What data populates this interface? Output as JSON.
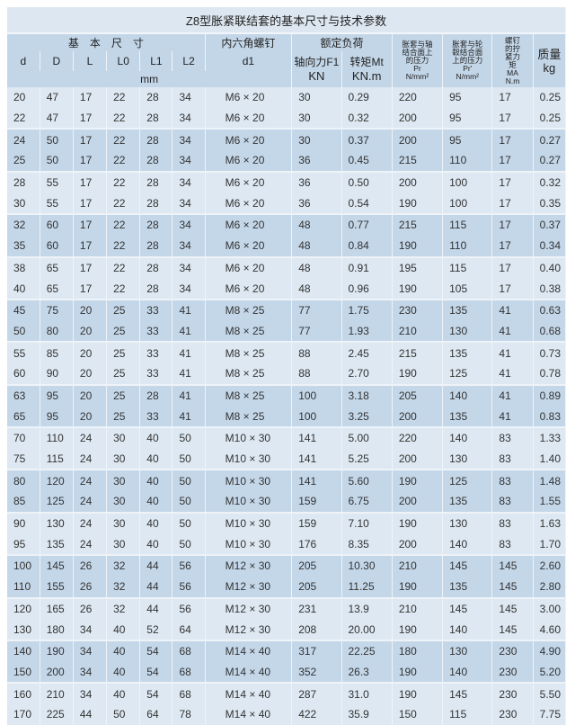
{
  "title": "Z8型胀紧联结套的基本尺寸与技术参数",
  "headers": {
    "basic_dims": "基　本　尺　寸",
    "screw": "内六角螺钉",
    "rated_load": "额定负荷",
    "shaft_pressure": "胀套与轴结合面上的压力",
    "shaft_pressure_sym": "Pr",
    "shaft_pressure_unit": "N/mm²",
    "hub_pressure": "胀套与轮毂结合面上的压力",
    "hub_pressure_sym": "Pr'",
    "hub_pressure_unit": "N/mm²",
    "torque_screw": "螺钉的拧紧力矩",
    "torque_screw_sym": "MA",
    "torque_screw_unit": "N.m",
    "mass": "质量",
    "mass_unit": "kg",
    "d": "d",
    "D": "D",
    "L": "L",
    "L0": "L0",
    "L1": "L1",
    "L2": "L2",
    "d1": "d1",
    "axial_force": "轴向力F1",
    "axial_force_unit": "KN",
    "torque": "转矩Mt",
    "torque_unit": "KN.m",
    "mm": "mm"
  },
  "rows": [
    [
      "20",
      "47",
      "17",
      "22",
      "28",
      "34",
      "M6 × 20",
      "30",
      "0.29",
      "220",
      "95",
      "17",
      "0.25"
    ],
    [
      "22",
      "47",
      "17",
      "22",
      "28",
      "34",
      "M6 × 20",
      "30",
      "0.32",
      "200",
      "95",
      "17",
      "0.25"
    ],
    [
      "24",
      "50",
      "17",
      "22",
      "28",
      "34",
      "M6 × 20",
      "30",
      "0.37",
      "200",
      "95",
      "17",
      "0.27"
    ],
    [
      "25",
      "50",
      "17",
      "22",
      "28",
      "34",
      "M6 × 20",
      "36",
      "0.45",
      "215",
      "110",
      "17",
      "0.27"
    ],
    [
      "28",
      "55",
      "17",
      "22",
      "28",
      "34",
      "M6 × 20",
      "36",
      "0.50",
      "200",
      "100",
      "17",
      "0.32"
    ],
    [
      "30",
      "55",
      "17",
      "22",
      "28",
      "34",
      "M6 × 20",
      "36",
      "0.54",
      "190",
      "100",
      "17",
      "0.35"
    ],
    [
      "32",
      "60",
      "17",
      "22",
      "28",
      "34",
      "M6 × 20",
      "48",
      "0.77",
      "215",
      "115",
      "17",
      "0.37"
    ],
    [
      "35",
      "60",
      "17",
      "22",
      "28",
      "34",
      "M6 × 20",
      "48",
      "0.84",
      "190",
      "110",
      "17",
      "0.34"
    ],
    [
      "38",
      "65",
      "17",
      "22",
      "28",
      "34",
      "M6 × 20",
      "48",
      "0.91",
      "195",
      "115",
      "17",
      "0.40"
    ],
    [
      "40",
      "65",
      "17",
      "22",
      "28",
      "34",
      "M6 × 20",
      "48",
      "0.96",
      "190",
      "105",
      "17",
      "0.38"
    ],
    [
      "45",
      "75",
      "20",
      "25",
      "33",
      "41",
      "M8 × 25",
      "77",
      "1.75",
      "230",
      "135",
      "41",
      "0.63"
    ],
    [
      "50",
      "80",
      "20",
      "25",
      "33",
      "41",
      "M8 × 25",
      "77",
      "1.93",
      "210",
      "130",
      "41",
      "0.68"
    ],
    [
      "55",
      "85",
      "20",
      "25",
      "33",
      "41",
      "M8 × 25",
      "88",
      "2.45",
      "215",
      "135",
      "41",
      "0.73"
    ],
    [
      "60",
      "90",
      "20",
      "25",
      "33",
      "41",
      "M8 × 25",
      "88",
      "2.70",
      "190",
      "125",
      "41",
      "0.78"
    ],
    [
      "63",
      "95",
      "20",
      "25",
      "28",
      "41",
      "M8 × 25",
      "100",
      "3.18",
      "205",
      "140",
      "41",
      "0.89"
    ],
    [
      "65",
      "95",
      "20",
      "25",
      "33",
      "41",
      "M8 × 25",
      "100",
      "3.25",
      "200",
      "135",
      "41",
      "0.83"
    ],
    [
      "70",
      "110",
      "24",
      "30",
      "40",
      "50",
      "M10 × 30",
      "141",
      "5.00",
      "220",
      "140",
      "83",
      "1.33"
    ],
    [
      "75",
      "115",
      "24",
      "30",
      "40",
      "50",
      "M10 × 30",
      "141",
      "5.25",
      "200",
      "130",
      "83",
      "1.40"
    ],
    [
      "80",
      "120",
      "24",
      "30",
      "40",
      "50",
      "M10 × 30",
      "141",
      "5.60",
      "190",
      "125",
      "83",
      "1.48"
    ],
    [
      "85",
      "125",
      "24",
      "30",
      "40",
      "50",
      "M10 × 30",
      "159",
      "6.75",
      "200",
      "135",
      "83",
      "1.55"
    ],
    [
      "90",
      "130",
      "24",
      "30",
      "40",
      "50",
      "M10 × 30",
      "159",
      "7.10",
      "190",
      "130",
      "83",
      "1.63"
    ],
    [
      "95",
      "135",
      "24",
      "30",
      "40",
      "50",
      "M10 × 30",
      "176",
      "8.35",
      "200",
      "140",
      "83",
      "1.70"
    ],
    [
      "100",
      "145",
      "26",
      "32",
      "44",
      "56",
      "M12 × 30",
      "205",
      "10.30",
      "210",
      "145",
      "145",
      "2.60"
    ],
    [
      "110",
      "155",
      "26",
      "32",
      "44",
      "56",
      "M12 × 30",
      "205",
      "11.25",
      "190",
      "135",
      "145",
      "2.80"
    ],
    [
      "120",
      "165",
      "26",
      "32",
      "44",
      "56",
      "M12 × 30",
      "231",
      "13.9",
      "210",
      "145",
      "145",
      "3.00"
    ],
    [
      "130",
      "180",
      "34",
      "40",
      "52",
      "64",
      "M12 × 30",
      "208",
      "20.00",
      "190",
      "140",
      "145",
      "4.60"
    ],
    [
      "140",
      "190",
      "34",
      "40",
      "54",
      "68",
      "M14 × 40",
      "317",
      "22.25",
      "180",
      "130",
      "230",
      "4.90"
    ],
    [
      "150",
      "200",
      "34",
      "40",
      "54",
      "68",
      "M14 × 40",
      "352",
      "26.3",
      "190",
      "140",
      "230",
      "5.20"
    ],
    [
      "160",
      "210",
      "34",
      "40",
      "54",
      "68",
      "M14 × 40",
      "287",
      "31.0",
      "190",
      "145",
      "230",
      "5.50"
    ],
    [
      "170",
      "225",
      "44",
      "50",
      "64",
      "78",
      "M14 × 40",
      "422",
      "35.9",
      "150",
      "115",
      "230",
      "7.75"
    ]
  ],
  "colors": {
    "light_band": "#dde8f2",
    "dark_band": "#c4d7e9",
    "header": "#c3d6e8"
  }
}
